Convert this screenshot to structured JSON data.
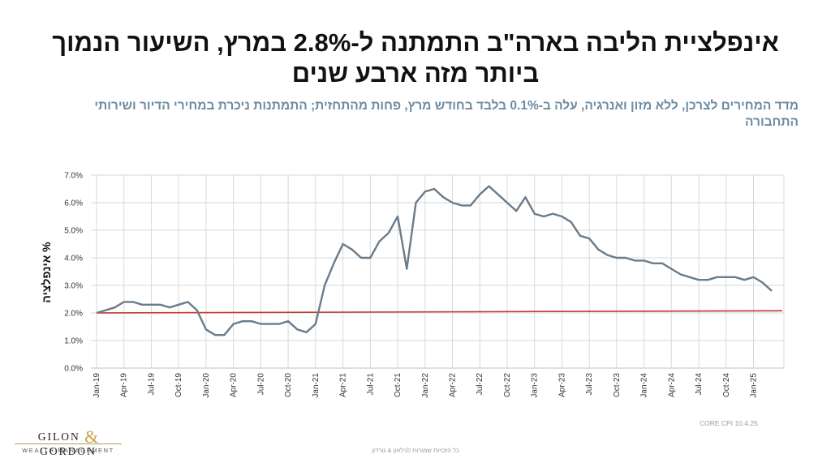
{
  "title": "אינפלציית הליבה בארה\"ב התמתנה ל-2.8% במרץ, השיעור הנמוך ביותר מזה ארבע שנים",
  "subtitle": "מדד המחירים לצרכן, ללא מזון ואנרגיה, עלה ב-0.1% בלבד בחודש מרץ, פחות מהתחזית; התמתנות ניכרת במחירי הדיור ושירותי התחבורה",
  "logo": {
    "name": "GILON & GORDON",
    "tagline": "WEALTH MANAGEMENT"
  },
  "source_note": "CORE CPI  10.4.25",
  "footer": "כל הזכויות שמורות לגילאון & גורדון",
  "colors": {
    "series": "#6a7b8a",
    "target": "#c0392b",
    "grid": "#d9d9d9",
    "subtitle": "#6c8ba2"
  },
  "chart_data": {
    "type": "line",
    "ylabel": "% אינפלציה",
    "ylim": [
      0,
      7
    ],
    "ytick_labels": [
      "0.0%",
      "1.0%",
      "2.0%",
      "3.0%",
      "4.0%",
      "5.0%",
      "6.0%",
      "7.0%"
    ],
    "x_tick_labels": [
      "Jan-19",
      "Apr-19",
      "Jul-19",
      "Oct-19",
      "Jan-20",
      "Apr-20",
      "Jul-20",
      "Oct-20",
      "Jan-21",
      "Apr-21",
      "Jul-21",
      "Oct-21",
      "Jan-22",
      "Apr-22",
      "Jul-22",
      "Oct-22",
      "Jan-23",
      "Apr-23",
      "Jul-23",
      "Oct-23",
      "Jan-24",
      "Apr-24",
      "Jul-24",
      "Oct-24",
      "Jan-25"
    ],
    "grid": true,
    "series": [
      {
        "values": [
          2.0,
          2.1,
          2.2,
          2.4,
          2.4,
          2.3,
          2.3,
          2.3,
          2.2,
          2.3,
          2.4,
          2.1,
          1.4,
          1.2,
          1.2,
          1.6,
          1.7,
          1.7,
          1.6,
          1.6,
          1.6,
          1.7,
          1.4,
          1.3,
          1.6,
          3.0,
          3.8,
          4.5,
          4.3,
          4.0,
          4.0,
          4.6,
          4.9,
          5.5,
          3.6,
          6.0,
          6.4,
          6.5,
          6.2,
          6.0,
          5.9,
          5.9,
          6.3,
          6.6,
          6.3,
          6.0,
          5.7,
          6.2,
          5.6,
          5.5,
          5.6,
          5.5,
          5.3,
          4.8,
          4.7,
          4.3,
          4.1,
          4.0,
          4.0,
          3.9,
          3.9,
          3.8,
          3.8,
          3.6,
          3.4,
          3.3,
          3.2,
          3.2,
          3.3,
          3.3,
          3.3,
          3.2,
          3.3,
          3.1,
          2.8
        ]
      },
      {
        "values": [
          2.0,
          2.08
        ]
      }
    ]
  }
}
